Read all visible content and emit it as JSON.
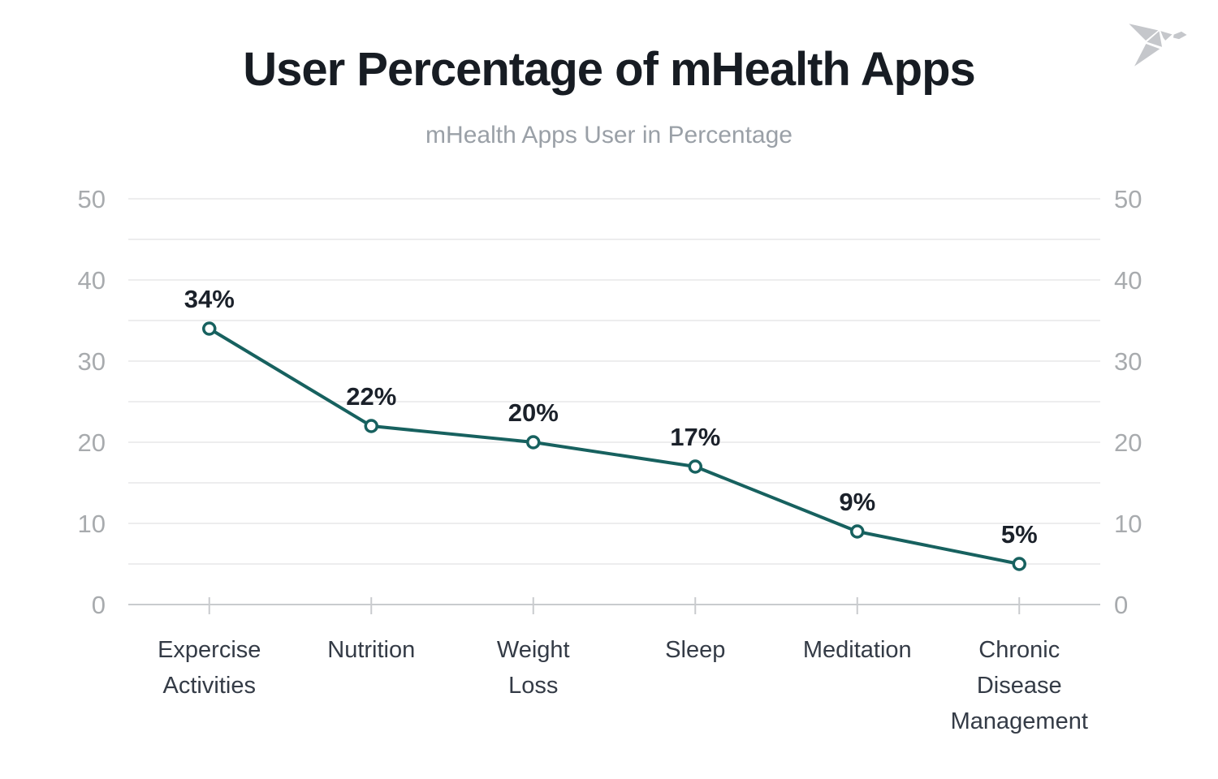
{
  "header": {
    "title": "User Percentage of mHealth Apps",
    "subtitle": "mHealth Apps User in Percentage",
    "logo_icon": "origami-bird-icon"
  },
  "chart_data": {
    "type": "line",
    "title": "User Percentage of mHealth Apps",
    "subtitle": "mHealth Apps User in Percentage",
    "categories": [
      "Expercise Activities",
      "Nutrition",
      "Weight Loss",
      "Sleep",
      "Meditation",
      "Chronic Disease Management"
    ],
    "category_lines": [
      [
        "Expercise",
        "Activities"
      ],
      [
        "Nutrition"
      ],
      [
        "Weight",
        "Loss"
      ],
      [
        "Sleep"
      ],
      [
        "Meditation"
      ],
      [
        "Chronic",
        "Disease",
        "Management"
      ]
    ],
    "values": [
      34,
      22,
      20,
      17,
      9,
      5
    ],
    "data_labels": [
      "34%",
      "22%",
      "20%",
      "17%",
      "9%",
      "5%"
    ],
    "ylim": [
      0,
      50
    ],
    "yticks": [
      0,
      10,
      20,
      30,
      40,
      50
    ],
    "grid_minor_step": 5,
    "grid": true,
    "legend_position": "none",
    "dual_y_axis_labels": true,
    "marker_style": "open-circle",
    "colors": {
      "line": "#17615f",
      "marker_fill": "#ffffff",
      "gridline": "#ededee",
      "axis_line": "#c9cbce",
      "y_tick_label": "#a8abae",
      "x_category_label": "#343b46",
      "data_label": "#1b212a",
      "title": "#171c23",
      "subtitle": "#9aa0a7",
      "logo": "#c5c7cb"
    }
  }
}
